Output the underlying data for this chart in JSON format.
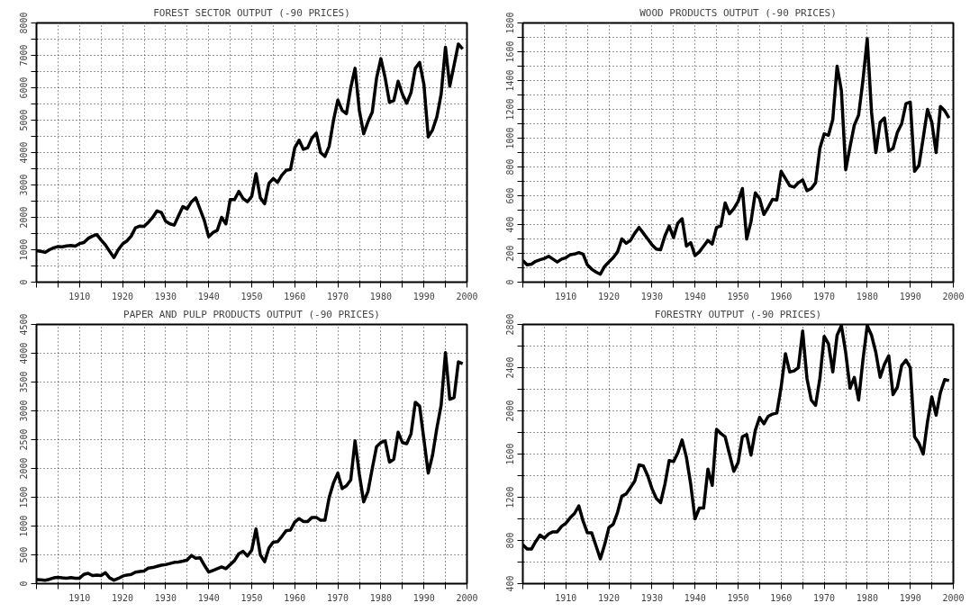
{
  "chart_data": [
    {
      "type": "line",
      "title": "FOREST SECTOR OUTPUT (-90 PRICES)",
      "grid": true,
      "line_style": "solid",
      "xlim": [
        1900,
        2000
      ],
      "ylim": [
        0,
        8000
      ],
      "xticks": [
        {
          "value": 1900,
          "label": null
        },
        {
          "value": 1905,
          "label": null
        },
        1910,
        {
          "value": 1915,
          "label": null
        },
        1920,
        {
          "value": 1925,
          "label": null
        },
        1930,
        {
          "value": 1935,
          "label": null
        },
        1940,
        {
          "value": 1945,
          "label": null
        },
        1950,
        {
          "value": 1955,
          "label": null
        },
        1960,
        {
          "value": 1965,
          "label": null
        },
        1970,
        {
          "value": 1975,
          "label": null
        },
        1980,
        {
          "value": 1985,
          "label": null
        },
        1990,
        {
          "value": 1995,
          "label": null
        },
        2000
      ],
      "yticks": [
        0,
        {
          "value": 500,
          "label": null
        },
        1000,
        {
          "value": 1500,
          "label": null
        },
        2000,
        {
          "value": 2500,
          "label": null
        },
        3000,
        {
          "value": 3500,
          "label": null
        },
        4000,
        {
          "value": 4500,
          "label": null
        },
        5000,
        {
          "value": 5500,
          "label": null
        },
        6000,
        {
          "value": 6500,
          "label": null
        },
        7000,
        {
          "value": 7500,
          "label": null
        },
        8000
      ],
      "series": [
        {
          "color": "#000000",
          "x": [
            1900,
            1901,
            1902,
            1903,
            1904,
            1905,
            1906,
            1907,
            1908,
            1909,
            1910,
            1911,
            1912,
            1913,
            1914,
            1915,
            1916,
            1917,
            1918,
            1919,
            1920,
            1921,
            1922,
            1923,
            1924,
            1925,
            1926,
            1927,
            1928,
            1929,
            1930,
            1931,
            1932,
            1933,
            1934,
            1935,
            1936,
            1937,
            1938,
            1939,
            1940,
            1941,
            1942,
            1943,
            1944,
            1945,
            1946,
            1947,
            1948,
            1949,
            1950,
            1951,
            1952,
            1953,
            1954,
            1955,
            1956,
            1957,
            1958,
            1959,
            1960,
            1961,
            1962,
            1963,
            1964,
            1965,
            1966,
            1967,
            1968,
            1969,
            1970,
            1971,
            1972,
            1973,
            1974,
            1975,
            1976,
            1977,
            1978,
            1979,
            1980,
            1981,
            1982,
            1983,
            1984,
            1985,
            1986,
            1987,
            1988,
            1989,
            1990,
            1991,
            1992,
            1993,
            1994,
            1995,
            1996,
            1997,
            1998,
            1999
          ],
          "values": [
            970,
            950,
            920,
            1000,
            1060,
            1100,
            1090,
            1120,
            1130,
            1110,
            1190,
            1220,
            1350,
            1420,
            1470,
            1300,
            1150,
            950,
            760,
            1000,
            1180,
            1270,
            1420,
            1680,
            1730,
            1720,
            1850,
            2000,
            2200,
            2150,
            1880,
            1800,
            1760,
            2050,
            2330,
            2260,
            2480,
            2600,
            2250,
            1900,
            1400,
            1530,
            1600,
            2000,
            1800,
            2550,
            2550,
            2800,
            2580,
            2480,
            2650,
            3350,
            2600,
            2420,
            3050,
            3200,
            3080,
            3300,
            3450,
            3480,
            4150,
            4380,
            4100,
            4150,
            4450,
            4600,
            4000,
            3880,
            4200,
            5000,
            5620,
            5300,
            5200,
            6000,
            6600,
            5300,
            4580,
            4950,
            5250,
            6300,
            6900,
            6300,
            5550,
            5600,
            6200,
            5800,
            5520,
            5850,
            6600,
            6780,
            6100,
            4480,
            4700,
            5100,
            5800,
            7250,
            6050,
            6700,
            7350,
            7200
          ]
        }
      ]
    },
    {
      "type": "line",
      "title": "WOOD PRODUCTS OUTPUT (-90 PRICES)",
      "grid": true,
      "line_style": "solid",
      "xlim": [
        1900,
        2000
      ],
      "ylim": [
        0,
        1800
      ],
      "xticks": [
        {
          "value": 1900,
          "label": null
        },
        {
          "value": 1905,
          "label": null
        },
        1910,
        {
          "value": 1915,
          "label": null
        },
        1920,
        {
          "value": 1925,
          "label": null
        },
        1930,
        {
          "value": 1935,
          "label": null
        },
        1940,
        {
          "value": 1945,
          "label": null
        },
        1950,
        {
          "value": 1955,
          "label": null
        },
        1960,
        {
          "value": 1965,
          "label": null
        },
        1970,
        {
          "value": 1975,
          "label": null
        },
        1980,
        {
          "value": 1985,
          "label": null
        },
        1990,
        {
          "value": 1995,
          "label": null
        },
        2000
      ],
      "yticks": [
        0,
        {
          "value": 100,
          "label": null
        },
        200,
        {
          "value": 300,
          "label": null
        },
        400,
        {
          "value": 500,
          "label": null
        },
        600,
        {
          "value": 700,
          "label": null
        },
        800,
        {
          "value": 900,
          "label": null
        },
        1000,
        {
          "value": 1100,
          "label": null
        },
        1200,
        {
          "value": 1300,
          "label": null
        },
        1400,
        {
          "value": 1500,
          "label": null
        },
        1600,
        {
          "value": 1700,
          "label": null
        },
        1800
      ],
      "series": [
        {
          "color": "#000000",
          "x": [
            1900,
            1901,
            1902,
            1903,
            1904,
            1905,
            1906,
            1907,
            1908,
            1909,
            1910,
            1911,
            1912,
            1913,
            1914,
            1915,
            1916,
            1917,
            1918,
            1919,
            1920,
            1921,
            1922,
            1923,
            1924,
            1925,
            1926,
            1927,
            1928,
            1929,
            1930,
            1931,
            1932,
            1933,
            1934,
            1935,
            1936,
            1937,
            1938,
            1939,
            1940,
            1941,
            1942,
            1943,
            1944,
            1945,
            1946,
            1947,
            1948,
            1949,
            1950,
            1951,
            1952,
            1953,
            1954,
            1955,
            1956,
            1957,
            1958,
            1959,
            1960,
            1961,
            1962,
            1963,
            1964,
            1965,
            1966,
            1967,
            1968,
            1969,
            1970,
            1971,
            1972,
            1973,
            1974,
            1975,
            1976,
            1977,
            1978,
            1979,
            1980,
            1981,
            1982,
            1983,
            1984,
            1985,
            1986,
            1987,
            1988,
            1989,
            1990,
            1991,
            1992,
            1993,
            1994,
            1995,
            1996,
            1997,
            1998,
            1999
          ],
          "values": [
            150,
            120,
            125,
            145,
            155,
            165,
            180,
            160,
            140,
            160,
            170,
            190,
            195,
            205,
            195,
            120,
            90,
            70,
            55,
            110,
            140,
            170,
            210,
            300,
            270,
            290,
            340,
            380,
            340,
            300,
            260,
            230,
            225,
            320,
            390,
            310,
            410,
            440,
            250,
            275,
            185,
            210,
            250,
            290,
            265,
            380,
            390,
            550,
            475,
            510,
            560,
            650,
            300,
            420,
            620,
            580,
            470,
            520,
            575,
            570,
            770,
            720,
            670,
            660,
            690,
            710,
            635,
            650,
            690,
            930,
            1030,
            1020,
            1130,
            1500,
            1330,
            780,
            940,
            1090,
            1160,
            1400,
            1690,
            1180,
            900,
            1110,
            1140,
            910,
            930,
            1040,
            1100,
            1240,
            1250,
            770,
            810,
            1000,
            1200,
            1110,
            900,
            1220,
            1190,
            1140
          ]
        }
      ]
    },
    {
      "type": "line",
      "title": "PAPER AND PULP PRODUCTS OUTPUT (-90 PRICES)",
      "grid": true,
      "line_style": "solid",
      "xlim": [
        1900,
        2000
      ],
      "ylim": [
        0,
        4500
      ],
      "xticks": [
        {
          "value": 1900,
          "label": null
        },
        {
          "value": 1905,
          "label": null
        },
        1910,
        {
          "value": 1915,
          "label": null
        },
        1920,
        {
          "value": 1925,
          "label": null
        },
        1930,
        {
          "value": 1935,
          "label": null
        },
        1940,
        {
          "value": 1945,
          "label": null
        },
        1950,
        {
          "value": 1955,
          "label": null
        },
        1960,
        {
          "value": 1965,
          "label": null
        },
        1970,
        {
          "value": 1975,
          "label": null
        },
        1980,
        {
          "value": 1985,
          "label": null
        },
        1990,
        {
          "value": 1995,
          "label": null
        },
        2000
      ],
      "yticks": [
        0,
        500,
        1000,
        1500,
        2000,
        2500,
        3000,
        3500,
        4000,
        4500
      ],
      "series": [
        {
          "color": "#000000",
          "x": [
            1900,
            1901,
            1902,
            1903,
            1904,
            1905,
            1906,
            1907,
            1908,
            1909,
            1910,
            1911,
            1912,
            1913,
            1914,
            1915,
            1916,
            1917,
            1918,
            1919,
            1920,
            1921,
            1922,
            1923,
            1924,
            1925,
            1926,
            1927,
            1928,
            1929,
            1930,
            1931,
            1932,
            1933,
            1934,
            1935,
            1936,
            1937,
            1938,
            1939,
            1940,
            1941,
            1942,
            1943,
            1944,
            1945,
            1946,
            1947,
            1948,
            1949,
            1950,
            1951,
            1952,
            1953,
            1954,
            1955,
            1956,
            1957,
            1958,
            1959,
            1960,
            1961,
            1962,
            1963,
            1964,
            1965,
            1966,
            1967,
            1968,
            1969,
            1970,
            1971,
            1972,
            1973,
            1974,
            1975,
            1976,
            1977,
            1978,
            1979,
            1980,
            1981,
            1982,
            1983,
            1984,
            1985,
            1986,
            1987,
            1988,
            1989,
            1990,
            1991,
            1992,
            1993,
            1994,
            1995,
            1996,
            1997,
            1998,
            1999
          ],
          "values": [
            70,
            65,
            60,
            75,
            100,
            110,
            100,
            95,
            105,
            95,
            95,
            160,
            180,
            140,
            150,
            140,
            190,
            100,
            60,
            90,
            130,
            150,
            160,
            200,
            210,
            220,
            270,
            280,
            300,
            320,
            330,
            350,
            370,
            375,
            390,
            410,
            490,
            440,
            450,
            320,
            200,
            230,
            260,
            290,
            260,
            330,
            400,
            520,
            560,
            480,
            580,
            950,
            500,
            380,
            620,
            720,
            730,
            820,
            920,
            930,
            1070,
            1130,
            1080,
            1080,
            1150,
            1150,
            1100,
            1100,
            1500,
            1750,
            1920,
            1650,
            1700,
            1800,
            2480,
            1900,
            1420,
            1600,
            2000,
            2380,
            2450,
            2480,
            2110,
            2160,
            2630,
            2450,
            2430,
            2600,
            3150,
            3080,
            2500,
            1920,
            2230,
            2700,
            3100,
            4010,
            3200,
            3230,
            3850,
            3820
          ]
        }
      ]
    },
    {
      "type": "line",
      "title": "FORESTRY OUTPUT (-90 PRICES)",
      "grid": true,
      "line_style": "solid",
      "xlim": [
        1900,
        2000
      ],
      "ylim": [
        400,
        2800
      ],
      "xticks": [
        {
          "value": 1900,
          "label": null
        },
        {
          "value": 1905,
          "label": null
        },
        1910,
        {
          "value": 1915,
          "label": null
        },
        1920,
        {
          "value": 1925,
          "label": null
        },
        1930,
        {
          "value": 1935,
          "label": null
        },
        1940,
        {
          "value": 1945,
          "label": null
        },
        1950,
        {
          "value": 1955,
          "label": null
        },
        1960,
        {
          "value": 1965,
          "label": null
        },
        1970,
        {
          "value": 1975,
          "label": null
        },
        1980,
        {
          "value": 1985,
          "label": null
        },
        1990,
        {
          "value": 1995,
          "label": null
        },
        2000
      ],
      "yticks": [
        400,
        {
          "value": 600,
          "label": null
        },
        800,
        {
          "value": 1000,
          "label": null
        },
        1200,
        {
          "value": 1400,
          "label": null
        },
        1600,
        {
          "value": 1800,
          "label": null
        },
        2000,
        {
          "value": 2200,
          "label": null
        },
        2400,
        {
          "value": 2600,
          "label": null
        },
        2800
      ],
      "series": [
        {
          "color": "#000000",
          "x": [
            1900,
            1901,
            1902,
            1903,
            1904,
            1905,
            1906,
            1907,
            1908,
            1909,
            1910,
            1911,
            1912,
            1913,
            1914,
            1915,
            1916,
            1917,
            1918,
            1919,
            1920,
            1921,
            1922,
            1923,
            1924,
            1925,
            1926,
            1927,
            1928,
            1929,
            1930,
            1931,
            1932,
            1933,
            1934,
            1935,
            1936,
            1937,
            1938,
            1939,
            1940,
            1941,
            1942,
            1943,
            1944,
            1945,
            1946,
            1947,
            1948,
            1949,
            1950,
            1951,
            1952,
            1953,
            1954,
            1955,
            1956,
            1957,
            1958,
            1959,
            1960,
            1961,
            1962,
            1963,
            1964,
            1965,
            1966,
            1967,
            1968,
            1969,
            1970,
            1971,
            1972,
            1973,
            1974,
            1975,
            1976,
            1977,
            1978,
            1979,
            1980,
            1981,
            1982,
            1983,
            1984,
            1985,
            1986,
            1987,
            1988,
            1989,
            1990,
            1991,
            1992,
            1993,
            1994,
            1995,
            1996,
            1997,
            1998,
            1999
          ],
          "values": [
            760,
            720,
            720,
            790,
            850,
            820,
            860,
            880,
            880,
            930,
            960,
            1010,
            1050,
            1120,
            980,
            870,
            870,
            750,
            630,
            760,
            920,
            950,
            1060,
            1210,
            1230,
            1290,
            1350,
            1500,
            1490,
            1400,
            1280,
            1190,
            1150,
            1320,
            1540,
            1530,
            1610,
            1730,
            1570,
            1320,
            1000,
            1100,
            1100,
            1460,
            1310,
            1830,
            1790,
            1760,
            1600,
            1440,
            1520,
            1760,
            1780,
            1590,
            1820,
            1940,
            1880,
            1950,
            1970,
            1980,
            2220,
            2530,
            2360,
            2370,
            2400,
            2740,
            2300,
            2100,
            2050,
            2300,
            2690,
            2620,
            2360,
            2700,
            2790,
            2540,
            2210,
            2310,
            2100,
            2470,
            2790,
            2700,
            2540,
            2310,
            2430,
            2510,
            2150,
            2220,
            2420,
            2470,
            2400,
            1760,
            1700,
            1600,
            1900,
            2130,
            1960,
            2170,
            2290,
            2280
          ]
        }
      ]
    }
  ]
}
